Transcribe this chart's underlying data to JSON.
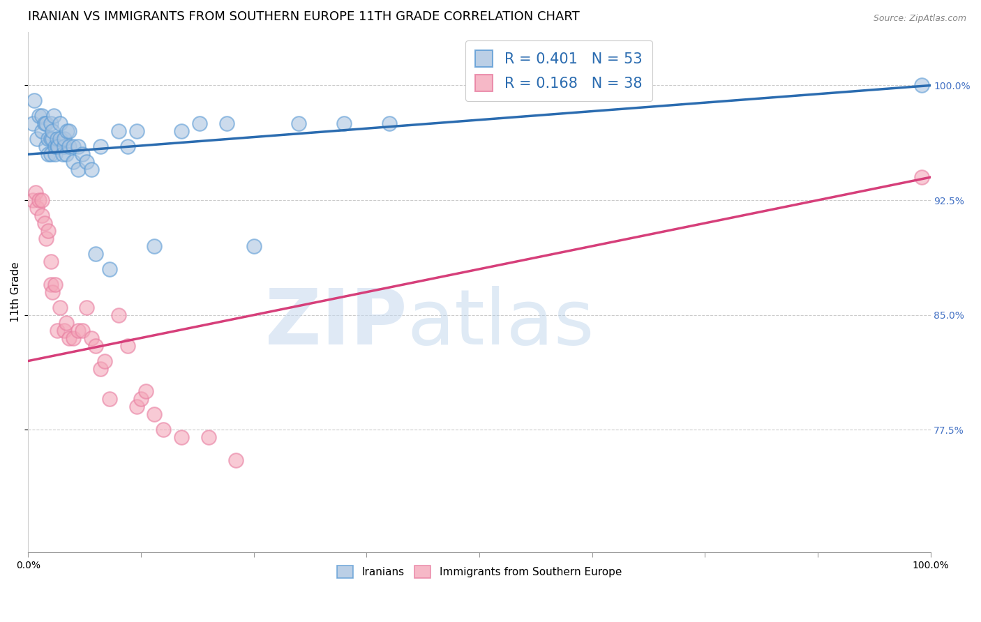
{
  "title": "IRANIAN VS IMMIGRANTS FROM SOUTHERN EUROPE 11TH GRADE CORRELATION CHART",
  "source": "Source: ZipAtlas.com",
  "ylabel": "11th Grade",
  "ytick_labels": [
    "100.0%",
    "92.5%",
    "85.0%",
    "77.5%"
  ],
  "ytick_values": [
    1.0,
    0.925,
    0.85,
    0.775
  ],
  "xmin": 0.0,
  "xmax": 1.0,
  "ymin": 0.695,
  "ymax": 1.035,
  "blue_R": 0.401,
  "blue_N": 53,
  "pink_R": 0.168,
  "pink_N": 38,
  "legend_text_blue": "R = 0.401   N = 53",
  "legend_text_pink": "R = 0.168   N = 38",
  "legend_label_blue": "Iranians",
  "legend_label_pink": "Immigrants from Southern Europe",
  "watermark_zip": "ZIP",
  "watermark_atlas": "atlas",
  "blue_color": "#aac4e0",
  "blue_edge_color": "#5b9bd5",
  "blue_line_color": "#2b6cb0",
  "pink_color": "#f4a7b9",
  "pink_edge_color": "#e87da0",
  "pink_line_color": "#d63f7a",
  "blue_scatter_x": [
    0.005,
    0.007,
    0.01,
    0.012,
    0.015,
    0.015,
    0.018,
    0.02,
    0.02,
    0.022,
    0.022,
    0.025,
    0.025,
    0.025,
    0.027,
    0.027,
    0.028,
    0.03,
    0.03,
    0.032,
    0.032,
    0.033,
    0.035,
    0.035,
    0.038,
    0.04,
    0.04,
    0.042,
    0.043,
    0.045,
    0.045,
    0.05,
    0.05,
    0.055,
    0.055,
    0.06,
    0.065,
    0.07,
    0.075,
    0.08,
    0.09,
    0.1,
    0.11,
    0.12,
    0.14,
    0.17,
    0.19,
    0.22,
    0.25,
    0.3,
    0.35,
    0.4,
    0.99
  ],
  "blue_scatter_y": [
    0.975,
    0.99,
    0.965,
    0.98,
    0.97,
    0.98,
    0.975,
    0.96,
    0.975,
    0.955,
    0.965,
    0.955,
    0.965,
    0.975,
    0.965,
    0.97,
    0.98,
    0.955,
    0.96,
    0.96,
    0.965,
    0.96,
    0.965,
    0.975,
    0.955,
    0.96,
    0.965,
    0.955,
    0.97,
    0.96,
    0.97,
    0.95,
    0.96,
    0.945,
    0.96,
    0.955,
    0.95,
    0.945,
    0.89,
    0.96,
    0.88,
    0.97,
    0.96,
    0.97,
    0.895,
    0.97,
    0.975,
    0.975,
    0.895,
    0.975,
    0.975,
    0.975,
    1.0
  ],
  "pink_scatter_x": [
    0.005,
    0.008,
    0.01,
    0.012,
    0.015,
    0.015,
    0.018,
    0.02,
    0.022,
    0.025,
    0.025,
    0.027,
    0.03,
    0.032,
    0.035,
    0.04,
    0.042,
    0.045,
    0.05,
    0.055,
    0.06,
    0.065,
    0.07,
    0.075,
    0.08,
    0.085,
    0.09,
    0.1,
    0.11,
    0.12,
    0.125,
    0.13,
    0.14,
    0.15,
    0.17,
    0.2,
    0.23,
    0.99
  ],
  "pink_scatter_y": [
    0.925,
    0.93,
    0.92,
    0.925,
    0.915,
    0.925,
    0.91,
    0.9,
    0.905,
    0.87,
    0.885,
    0.865,
    0.87,
    0.84,
    0.855,
    0.84,
    0.845,
    0.835,
    0.835,
    0.84,
    0.84,
    0.855,
    0.835,
    0.83,
    0.815,
    0.82,
    0.795,
    0.85,
    0.83,
    0.79,
    0.795,
    0.8,
    0.785,
    0.775,
    0.77,
    0.77,
    0.755,
    0.94
  ],
  "blue_line_x0": 0.0,
  "blue_line_x1": 1.0,
  "blue_line_y0": 0.955,
  "blue_line_y1": 1.0,
  "pink_line_x0": 0.0,
  "pink_line_x1": 1.0,
  "pink_line_y0": 0.82,
  "pink_line_y1": 0.94,
  "grid_color": "#cccccc",
  "background_color": "#ffffff",
  "title_fontsize": 13,
  "axis_label_fontsize": 11,
  "tick_fontsize": 10,
  "right_tick_color": "#4472c4"
}
